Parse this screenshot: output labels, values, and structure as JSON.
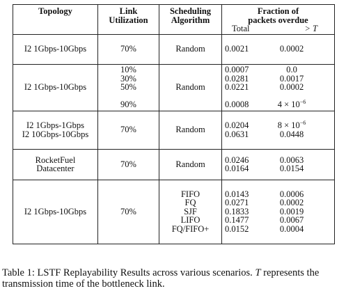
{
  "headers": {
    "topology": "Topology",
    "link_line1": "Link",
    "link_line2": "Utilization",
    "sched_line1": "Scheduling",
    "sched_line2": "Algorithm",
    "frac_line1": "Fraction of",
    "frac_line2": "packets overdue",
    "frac_total": "Total",
    "frac_gt": "> T"
  },
  "rows": [
    {
      "topology": [
        "I2 1Gbps-10Gbps"
      ],
      "util": [
        "70%"
      ],
      "sched": [
        "Random"
      ],
      "total": [
        "0.0021"
      ],
      "gt": [
        "0.0002"
      ]
    },
    {
      "topology": [
        "I2 1Gbps-10Gbps"
      ],
      "util": [
        "10%",
        "30%",
        "50%",
        "",
        "90%"
      ],
      "sched": [
        "Random"
      ],
      "total": [
        "0.0007",
        "0.0281",
        "0.0221",
        "",
        "0.0008"
      ],
      "gt": [
        "0.0",
        "0.0017",
        "0.0002",
        "",
        "4 × 10"
      ],
      "gt_exp": "−6"
    },
    {
      "topology": [
        "I2 1Gbps-1Gbps",
        "I2 10Gbps-10Gbps"
      ],
      "util": [
        "70%"
      ],
      "sched": [
        "Random"
      ],
      "total": [
        "0.0204",
        "0.0631"
      ],
      "gt": [
        "8 × 10",
        "0.0448"
      ],
      "gt_exp": "−6"
    },
    {
      "topology": [
        "RocketFuel",
        "Datacenter"
      ],
      "util": [
        "70%"
      ],
      "sched": [
        "Random"
      ],
      "total": [
        "0.0246",
        "0.0164"
      ],
      "gt": [
        "0.0063",
        "0.0154"
      ]
    },
    {
      "topology": [
        "I2 1Gbps-10Gbps"
      ],
      "util": [
        "70%"
      ],
      "sched": [
        "FIFO",
        "FQ",
        "SJF",
        "LIFO",
        "FQ/FIFO+"
      ],
      "total": [
        "0.0143",
        "0.0271",
        "0.1833",
        "0.1477",
        "0.0152"
      ],
      "gt": [
        "0.0006",
        "0.0002",
        "0.0019",
        "0.0067",
        "0.0004"
      ]
    }
  ],
  "caption": {
    "prefix": "Table 1: LSTF Replayability Results across various scenarios. ",
    "var": "T",
    "suffix": " represents the transmission time of the bottleneck link."
  }
}
